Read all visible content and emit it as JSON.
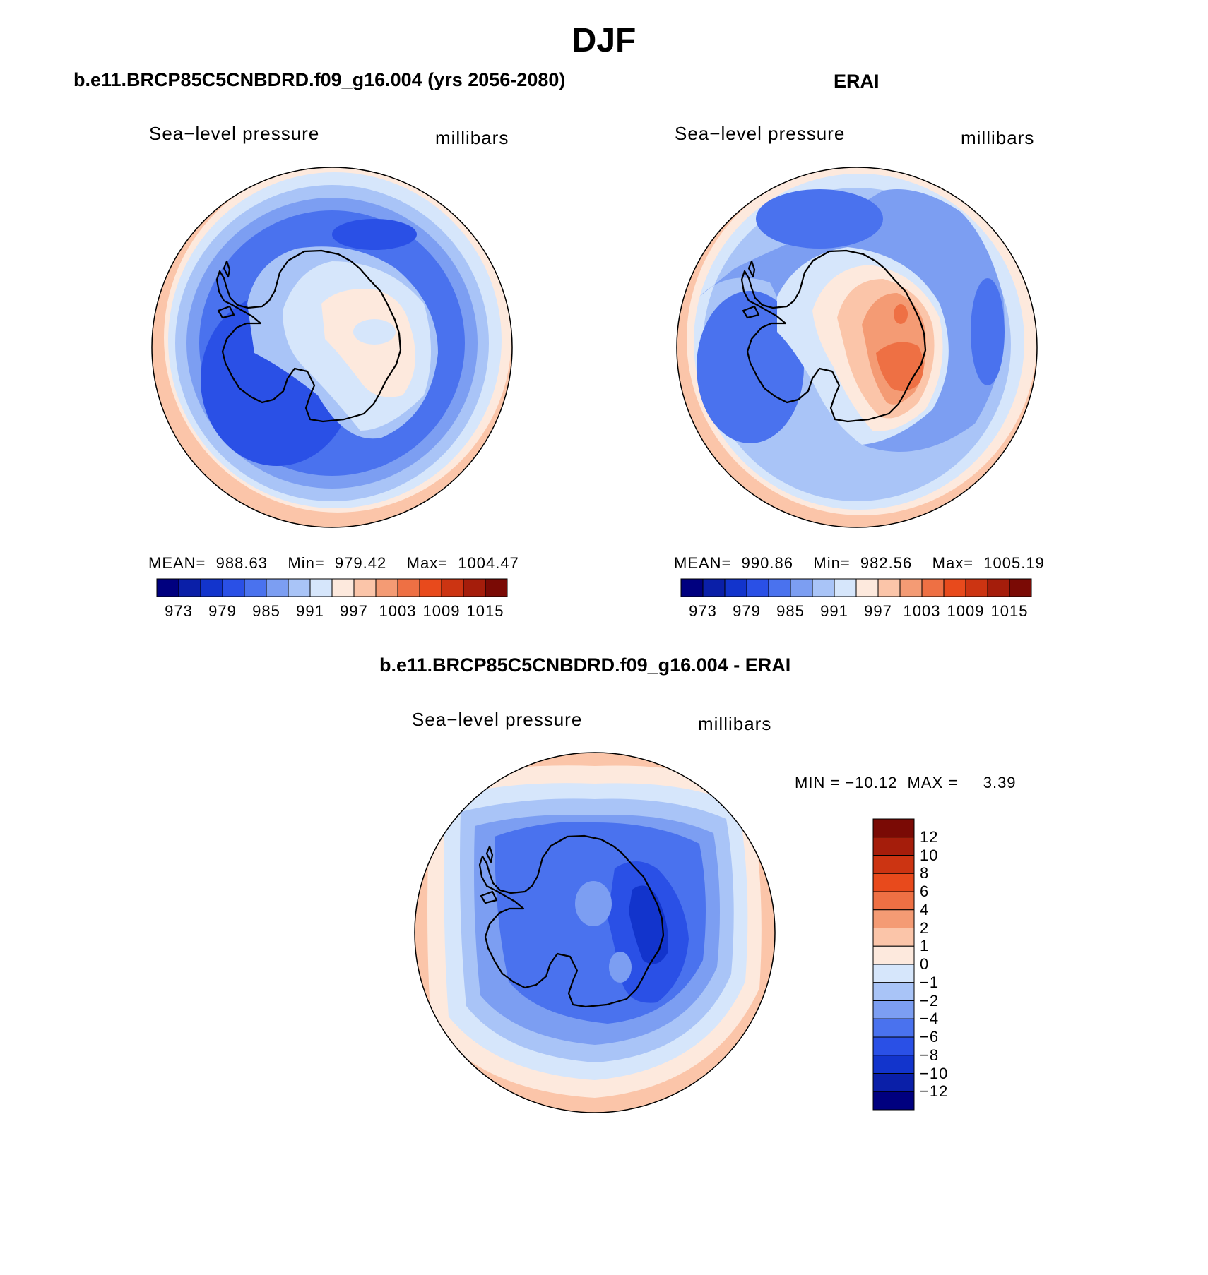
{
  "title": "DJF",
  "panels": [
    {
      "id": "model",
      "title": "b.e11.BRCP85C5CNBDRD.f09_g16.004 (yrs 2056-2080)",
      "left_label": "Sea−level pressure",
      "right_label": "millibars",
      "stats": "MEAN=  988.63    Min=  979.42    Max=  1004.47",
      "colorbar": {
        "orientation": "horizontal",
        "colors": [
          "#00007f",
          "#0a1fa8",
          "#1234cc",
          "#2a50e6",
          "#4a72ee",
          "#7c9ef2",
          "#a9c4f7",
          "#d6e6fb",
          "#fde9dd",
          "#fbc5a9",
          "#f49b74",
          "#ee7044",
          "#e84a1c",
          "#cc3412",
          "#a51d0b",
          "#7a0a05"
        ],
        "tick_labels": [
          "973",
          "979",
          "985",
          "991",
          "997",
          "1003",
          "1009",
          "1015"
        ]
      }
    },
    {
      "id": "obs",
      "title": "ERAI",
      "left_label": "Sea−level pressure",
      "right_label": "millibars",
      "stats": "MEAN=  990.86    Min=  982.56    Max=  1005.19",
      "colorbar": {
        "orientation": "horizontal",
        "colors": [
          "#00007f",
          "#0a1fa8",
          "#1234cc",
          "#2a50e6",
          "#4a72ee",
          "#7c9ef2",
          "#a9c4f7",
          "#d6e6fb",
          "#fde9dd",
          "#fbc5a9",
          "#f49b74",
          "#ee7044",
          "#e84a1c",
          "#cc3412",
          "#a51d0b",
          "#7a0a05"
        ],
        "tick_labels": [
          "973",
          "979",
          "985",
          "991",
          "997",
          "1003",
          "1009",
          "1015"
        ]
      }
    },
    {
      "id": "diff",
      "title": "b.e11.BRCP85C5CNBDRD.f09_g16.004 - ERAI",
      "left_label": "Sea−level pressure",
      "right_label": "millibars",
      "stats": "MIN = −10.12  MAX =     3.39",
      "colorbar": {
        "orientation": "vertical",
        "colors_top_to_bottom": [
          "#7a0a05",
          "#a51d0b",
          "#cc3412",
          "#e84a1c",
          "#ee7044",
          "#f49b74",
          "#fbc5a9",
          "#fde9dd",
          "#d6e6fb",
          "#a9c4f7",
          "#7c9ef2",
          "#4a72ee",
          "#2a50e6",
          "#1234cc",
          "#0a1fa8",
          "#00007f"
        ],
        "tick_labels_top_to_bottom": [
          "12",
          "10",
          "8",
          "6",
          "4",
          "2",
          "1",
          "0",
          "−1",
          "−2",
          "−4",
          "−6",
          "−8",
          "−10",
          "−12"
        ]
      }
    }
  ]
}
